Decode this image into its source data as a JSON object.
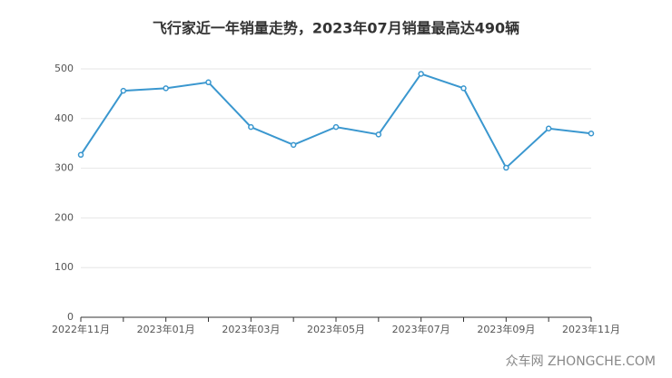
{
  "chart_data": {
    "type": "line",
    "title": "飞行家近一年销量走势，2023年07月销量最高达490辆",
    "categories": [
      "2022年11月",
      null,
      "2023年01月",
      null,
      "2023年03月",
      null,
      "2023年05月",
      null,
      "2023年07月",
      null,
      "2023年09月",
      null,
      "2023年11月"
    ],
    "values": [
      327,
      456,
      461,
      473,
      383,
      347,
      383,
      368,
      490,
      461,
      301,
      380,
      370
    ],
    "color": "#3a97cf",
    "ylim": [
      0,
      500
    ],
    "yticks": [
      0,
      100,
      200,
      300,
      400,
      500
    ],
    "grid": true,
    "watermark": "众车网 ZHONGCHE.COM"
  }
}
